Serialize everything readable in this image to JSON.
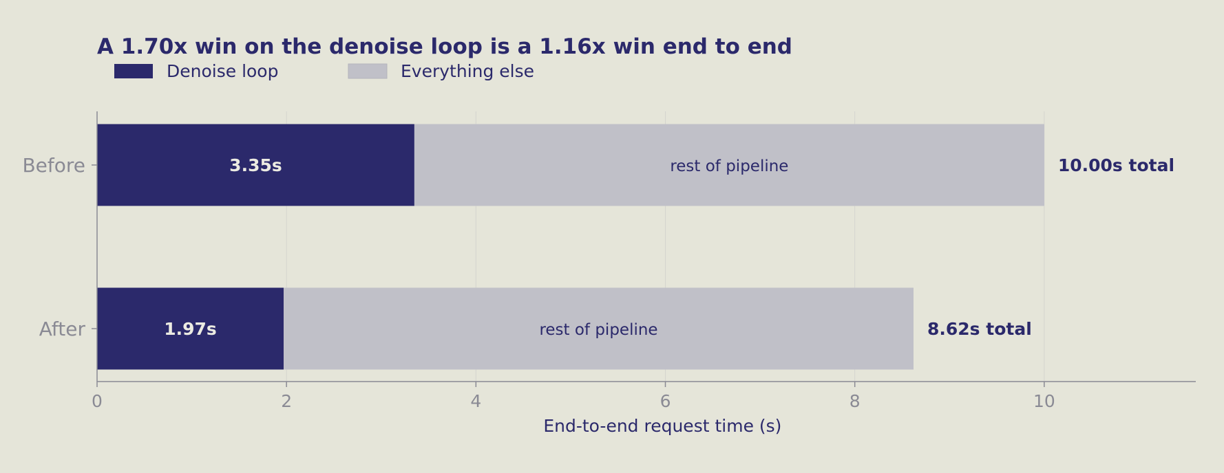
{
  "chart_data": {
    "type": "bar",
    "orientation": "horizontal",
    "stacked": true,
    "title": "A 1.70x win on the denoise loop is a 1.16x win end to end",
    "xlabel": "End-to-end request time (s)",
    "ylabel": "",
    "xlim": [
      0,
      11.6
    ],
    "xticks": [
      "0",
      "2",
      "4",
      "6",
      "8",
      "10"
    ],
    "grid": "vertical",
    "legend_position": "top-left",
    "categories": [
      "Before",
      "After"
    ],
    "series": [
      {
        "name": "Denoise loop",
        "values": [
          3.35,
          1.97
        ],
        "color": "#2b296b",
        "labels": [
          "3.35s",
          "1.97s"
        ]
      },
      {
        "name": "Everything else",
        "values": [
          6.65,
          6.65
        ],
        "color": "#c0c0c8",
        "labels": [
          "rest of pipeline",
          "rest of pipeline"
        ]
      }
    ],
    "totals": [
      10.0,
      8.62
    ],
    "total_labels": [
      "10.00s total",
      "8.62s total"
    ]
  },
  "colors": {
    "background": "#e5e5d9",
    "text_dark": "#2b296b",
    "tick_text": "#8a8a94",
    "axis": "#8a8a94",
    "grid": "#d4d4cf",
    "bar_label_light": "#ecebe2"
  }
}
